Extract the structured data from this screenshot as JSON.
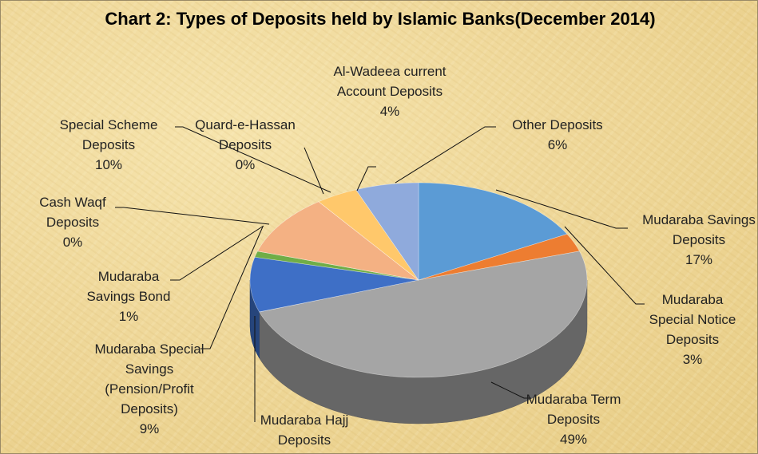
{
  "chart_data": {
    "type": "pie3d",
    "title": "Chart 2: Types of Deposits held by Islamic Banks(December 2014)",
    "categories": [
      "Mudaraba Savings Deposits",
      "Mudaraba Special Notice Deposits",
      "Mudaraba Term Deposits",
      "Mudaraba Hajj Deposits",
      "Mudaraba Special Savings (Pension/Profit Deposits)",
      "Mudaraba Savings Bond",
      "Cash Waqf Deposits",
      "Special Scheme Deposits",
      "Quard-e-Hassan Deposits",
      "Al-Wadeea current Account Deposits",
      "Other Deposits"
    ],
    "values": [
      17,
      3,
      49,
      0,
      9,
      1,
      0,
      10,
      0,
      4,
      6
    ],
    "value_labels": [
      "17%",
      "3%",
      "49%",
      "0%",
      "9%",
      "1%",
      "0%",
      "10%",
      "0%",
      "4%",
      "6%"
    ],
    "colors": [
      "#5b9bd5",
      "#ed7d31",
      "#a5a5a5",
      "#ffc000",
      "#3e6fc6",
      "#70ad47",
      "#2e75b6",
      "#f4b183",
      "#ffd966",
      "#ffc86b",
      "#8faadc"
    ]
  }
}
